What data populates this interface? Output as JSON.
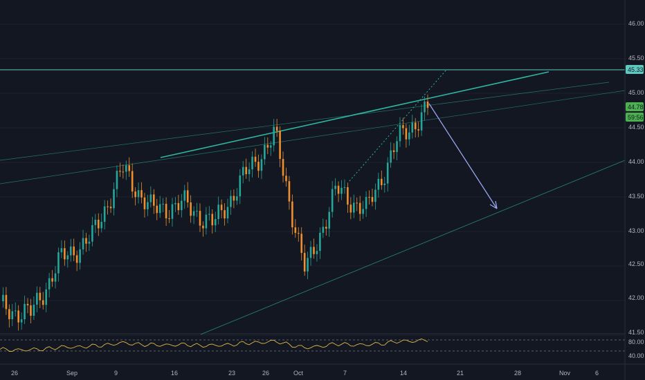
{
  "colors": {
    "background": "#131722",
    "up": "#26a69a",
    "down": "#ef8f2d",
    "trendline": "#2fb6a0",
    "resistance": "#5fc9c0",
    "projection_arrow": "#9aa6f0",
    "rsi_line": "#e0b84a",
    "price_badge_green": "#4caf50",
    "level_badge": "#5fc9c0"
  },
  "price_axis": {
    "ticks": [
      "46.00",
      "45.50",
      "45.00",
      "44.50",
      "44.00",
      "43.50",
      "43.00",
      "42.50",
      "42.00",
      "41.50"
    ],
    "resistance_label": "45.33",
    "last_price_label": "44.78",
    "countdown_label": "59:56"
  },
  "rsi_axis": {
    "ticks": [
      "80.00",
      "40.00"
    ]
  },
  "time_axis": {
    "ticks": [
      "26",
      "Sep",
      "9",
      "16",
      "23",
      "26",
      "Oct",
      "7",
      "14",
      "21",
      "28",
      "Nov",
      "6"
    ]
  },
  "chart_data": {
    "type": "candlestick",
    "ylim": [
      41.5,
      46.2
    ],
    "resistance_level": 45.33,
    "last_price": 44.78,
    "close_series_approx": [
      {
        "x": "Aug 26",
        "y": 41.9
      },
      {
        "x": "Sep 2",
        "y": 41.8
      },
      {
        "x": "Sep 5",
        "y": 42.6
      },
      {
        "x": "Sep 9",
        "y": 42.9
      },
      {
        "x": "Sep 12",
        "y": 43.9
      },
      {
        "x": "Sep 16",
        "y": 43.3
      },
      {
        "x": "Sep 19",
        "y": 43.4
      },
      {
        "x": "Sep 23",
        "y": 43.1
      },
      {
        "x": "Sep 26",
        "y": 43.8
      },
      {
        "x": "Oct 1",
        "y": 44.4
      },
      {
        "x": "Oct 3",
        "y": 42.4
      },
      {
        "x": "Oct 7",
        "y": 43.6
      },
      {
        "x": "Oct 10",
        "y": 43.3
      },
      {
        "x": "Oct 14",
        "y": 44.3
      },
      {
        "x": "Oct 17",
        "y": 44.78
      }
    ],
    "rsi": {
      "levels": [
        80,
        40
      ],
      "last": 72
    }
  }
}
